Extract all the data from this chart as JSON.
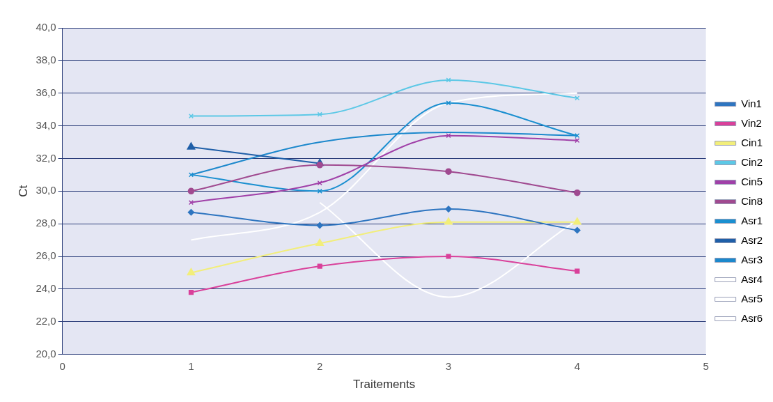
{
  "chart_data": {
    "type": "line",
    "xlabel": "Traitements",
    "ylabel": "Ct",
    "x": [
      1,
      2,
      3,
      4
    ],
    "xlim": [
      0,
      5
    ],
    "xticks": [
      0,
      1,
      2,
      3,
      4,
      5
    ],
    "ylim": [
      20,
      40
    ],
    "yticks": [
      {
        "value": 20,
        "label": "20,0"
      },
      {
        "value": 22,
        "label": "22,0"
      },
      {
        "value": 24,
        "label": "24,0"
      },
      {
        "value": 26,
        "label": "26,0"
      },
      {
        "value": 28,
        "label": "28,0"
      },
      {
        "value": 30,
        "label": "30,0"
      },
      {
        "value": 32,
        "label": "32,0"
      },
      {
        "value": 34,
        "label": "34,0"
      },
      {
        "value": 36,
        "label": "36,0"
      },
      {
        "value": 38,
        "label": "38,0"
      },
      {
        "value": 40,
        "label": "40,0"
      }
    ],
    "grid": "y",
    "legend": "right",
    "series": [
      {
        "name": "Vin1",
        "color": "#2e75c0",
        "marker": "diamond",
        "values": [
          28.7,
          27.9,
          28.9,
          27.6
        ]
      },
      {
        "name": "Vin2",
        "color": "#d9409a",
        "marker": "square",
        "values": [
          23.8,
          25.4,
          26.0,
          25.1
        ]
      },
      {
        "name": "Cin1",
        "color": "#f2ee7a",
        "marker": "triangle",
        "values": [
          25.0,
          26.8,
          28.1,
          28.1
        ]
      },
      {
        "name": "Cin2",
        "color": "#5cc8e6",
        "marker": "cross",
        "values": [
          34.6,
          34.7,
          36.8,
          35.7
        ]
      },
      {
        "name": "Cin5",
        "color": "#a040a8",
        "marker": "cross",
        "values": [
          29.3,
          30.5,
          33.4,
          33.1
        ]
      },
      {
        "name": "Cin8",
        "color": "#a04a90",
        "marker": "circle",
        "values": [
          30.0,
          31.6,
          31.2,
          29.9
        ]
      },
      {
        "name": "Asr1",
        "color": "#1a8fd0",
        "marker": "cross",
        "values": [
          31.0,
          30.0,
          35.4,
          33.4
        ]
      },
      {
        "name": "Asr2",
        "color": "#1f5fa8",
        "marker": "triangle",
        "values": [
          32.7,
          31.7,
          null,
          null
        ]
      },
      {
        "name": "Asr3",
        "color": "#1c88cc",
        "marker": "none",
        "values": [
          31.0,
          33.0,
          33.6,
          33.4
        ]
      },
      {
        "name": "Asr4",
        "color": "#ffffff",
        "marker": "none",
        "values": [
          27.0,
          28.7,
          35.4,
          36.0
        ]
      },
      {
        "name": "Asr5",
        "color": "#ffffff",
        "marker": "none",
        "values": [
          null,
          29.3,
          23.5,
          28.2
        ]
      },
      {
        "name": "Asr6",
        "color": "#ffffff",
        "marker": "none",
        "values": [
          null,
          null,
          null,
          null
        ]
      }
    ]
  }
}
